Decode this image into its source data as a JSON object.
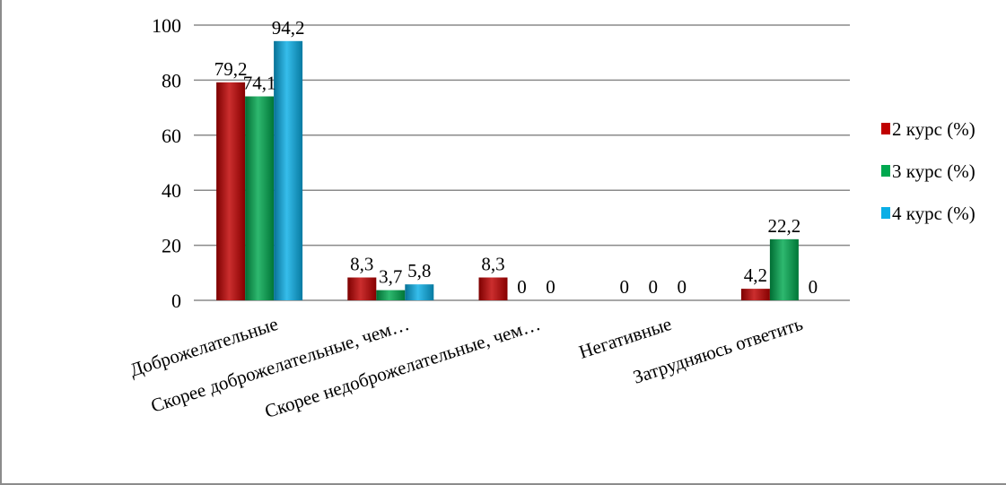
{
  "chart_data": {
    "type": "bar",
    "title": "",
    "xlabel": "",
    "ylabel": "",
    "ylim": [
      0,
      100
    ],
    "yticks": [
      "0",
      "20",
      "40",
      "60",
      "80",
      "100"
    ],
    "grid": true,
    "legend_position": "right",
    "categories": [
      "Доброжелательные",
      "Скорее доброжелательные, чем…",
      "Скорее недоброжелательные, чем…",
      "Негативные",
      "Затрудняюсь ответить"
    ],
    "series": [
      {
        "name": "2 курс (%)",
        "color": "#c00000",
        "values": [
          79.2,
          8.3,
          8.3,
          0,
          4.2
        ],
        "labels": [
          "79,2",
          "8,3",
          "8,3",
          "0",
          "4,2"
        ]
      },
      {
        "name": "3 курс (%)",
        "color": "#00a84f",
        "values": [
          74.1,
          3.7,
          0,
          0,
          22.2
        ],
        "labels": [
          "74,1",
          "3,7",
          "0",
          "0",
          "22,2"
        ]
      },
      {
        "name": "4 курс (%)",
        "color": "#0aaee6",
        "values": [
          94.2,
          5.8,
          0,
          0,
          0
        ],
        "labels": [
          "94,2",
          "5,8",
          "0",
          "0",
          "0"
        ]
      }
    ]
  }
}
